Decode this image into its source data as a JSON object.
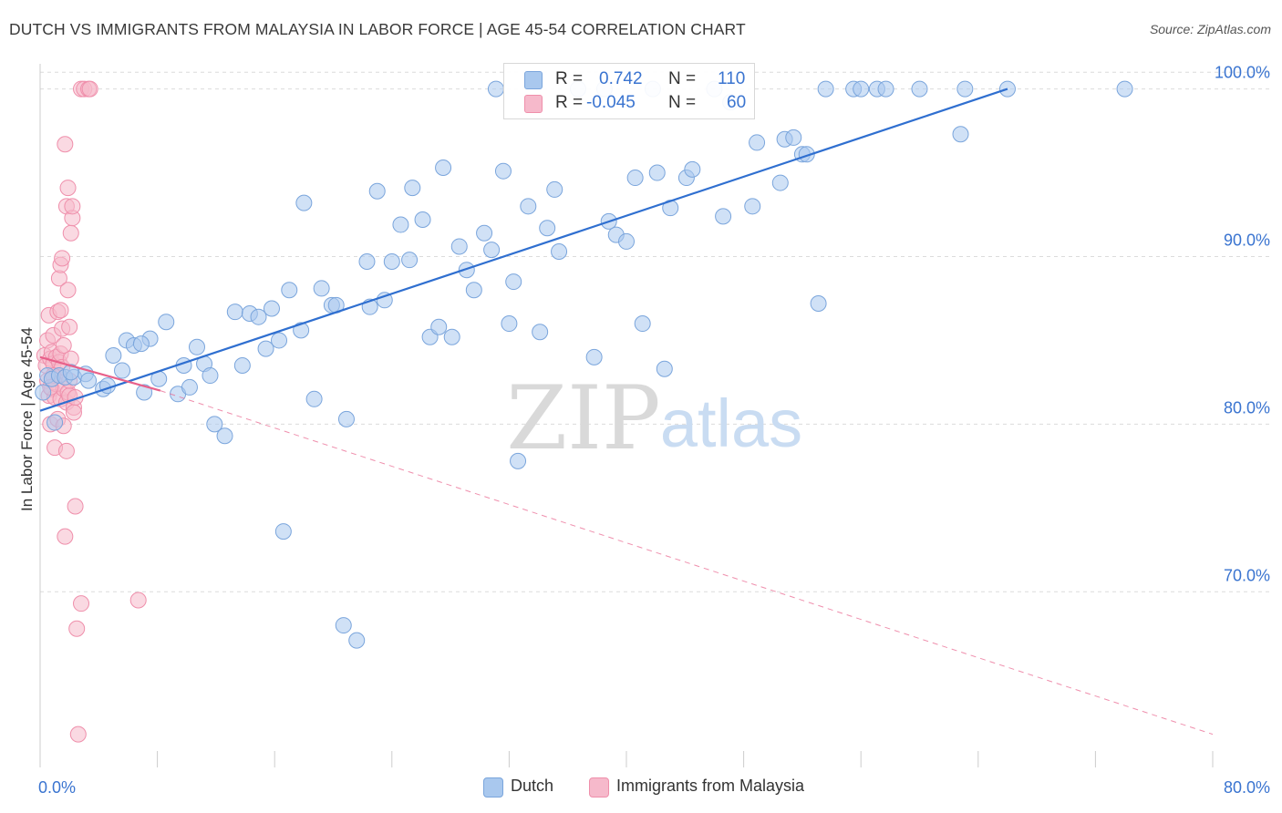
{
  "title": "DUTCH VS IMMIGRANTS FROM MALAYSIA IN LABOR FORCE | AGE 45-54 CORRELATION CHART",
  "source": "Source: ZipAtlas.com",
  "watermark": {
    "zip": "ZIP",
    "atlas": "atlas"
  },
  "legend": {
    "r_label": "R =",
    "n_label": "N =",
    "rows": [
      {
        "r": "0.742",
        "n": "110"
      },
      {
        "r": "-0.045",
        "n": "60"
      }
    ]
  },
  "bottom_legend": [
    "Dutch",
    "Immigrants from Malaysia"
  ],
  "colors": {
    "dutch_fill": "#a9c8ee",
    "dutch_stroke": "#7aa5dc",
    "dutch_line": "#2f6fd0",
    "malaysia_fill": "#f6b9cb",
    "malaysia_stroke": "#ef8fab",
    "malaysia_line": "#e8608a",
    "axis_text": "#3a74d0",
    "grid": "#dcdcdc"
  },
  "chart_data": {
    "type": "scatter",
    "title": "DUTCH VS IMMIGRANTS FROM MALAYSIA IN LABOR FORCE | AGE 45-54 CORRELATION CHART",
    "xlabel": "",
    "ylabel": "In Labor Force | Age 45-54",
    "xlim": [
      0,
      80
    ],
    "ylim": [
      60.5,
      101.5
    ],
    "x_tick_labels": [
      "0.0%",
      "80.0%"
    ],
    "y_ticks": [
      70,
      80,
      90,
      100
    ],
    "y_tick_labels": [
      "70.0%",
      "80.0%",
      "90.0%",
      "100.0%"
    ],
    "grid": true,
    "legend_position": "top-center",
    "series": [
      {
        "name": "Dutch",
        "r": 0.742,
        "n": 110,
        "trend": {
          "x": [
            0,
            66
          ],
          "y": [
            80.8,
            100
          ]
        },
        "points": [
          [
            0.2,
            81.9
          ],
          [
            0.5,
            82.9
          ],
          [
            0.8,
            82.7
          ],
          [
            1.0,
            80.1
          ],
          [
            1.3,
            82.9
          ],
          [
            1.7,
            82.8
          ],
          [
            2.3,
            82.8
          ],
          [
            3.1,
            83.0
          ],
          [
            3.3,
            82.6
          ],
          [
            4.3,
            82.1
          ],
          [
            5.0,
            84.1
          ],
          [
            5.6,
            83.2
          ],
          [
            5.9,
            85.0
          ],
          [
            6.4,
            84.7
          ],
          [
            7.1,
            81.9
          ],
          [
            7.5,
            85.1
          ],
          [
            8.1,
            82.7
          ],
          [
            8.6,
            86.1
          ],
          [
            9.4,
            81.8
          ],
          [
            9.8,
            83.5
          ],
          [
            10.2,
            82.2
          ],
          [
            10.7,
            84.6
          ],
          [
            11.2,
            83.6
          ],
          [
            11.6,
            82.9
          ],
          [
            11.9,
            80.0
          ],
          [
            12.6,
            79.3
          ],
          [
            13.3,
            86.7
          ],
          [
            13.8,
            83.5
          ],
          [
            14.3,
            86.6
          ],
          [
            14.9,
            86.4
          ],
          [
            15.4,
            84.5
          ],
          [
            15.8,
            86.9
          ],
          [
            16.3,
            85.0
          ],
          [
            16.6,
            73.6
          ],
          [
            17.0,
            88.0
          ],
          [
            17.8,
            85.6
          ],
          [
            18.0,
            93.2
          ],
          [
            18.7,
            81.5
          ],
          [
            19.2,
            88.1
          ],
          [
            19.9,
            87.1
          ],
          [
            20.2,
            87.1
          ],
          [
            20.7,
            68.0
          ],
          [
            20.9,
            80.3
          ],
          [
            21.6,
            67.1
          ],
          [
            22.3,
            89.7
          ],
          [
            22.5,
            87.0
          ],
          [
            23.0,
            93.9
          ],
          [
            23.5,
            87.4
          ],
          [
            24.0,
            89.7
          ],
          [
            24.6,
            91.9
          ],
          [
            25.2,
            89.8
          ],
          [
            25.4,
            94.1
          ],
          [
            26.1,
            92.2
          ],
          [
            26.6,
            85.2
          ],
          [
            27.2,
            85.8
          ],
          [
            27.5,
            95.3
          ],
          [
            28.1,
            85.2
          ],
          [
            28.6,
            90.6
          ],
          [
            29.1,
            89.2
          ],
          [
            29.6,
            88.0
          ],
          [
            30.3,
            91.4
          ],
          [
            30.8,
            90.4
          ],
          [
            31.1,
            100.0
          ],
          [
            31.6,
            95.1
          ],
          [
            32.0,
            86.0
          ],
          [
            32.3,
            88.5
          ],
          [
            32.6,
            77.8
          ],
          [
            33.3,
            93.0
          ],
          [
            34.1,
            85.5
          ],
          [
            34.6,
            91.7
          ],
          [
            35.1,
            94.0
          ],
          [
            35.4,
            90.3
          ],
          [
            36.7,
            100.0
          ],
          [
            37.8,
            84.0
          ],
          [
            38.5,
            100.0
          ],
          [
            38.8,
            92.1
          ],
          [
            39.3,
            91.3
          ],
          [
            40.0,
            90.9
          ],
          [
            40.6,
            94.7
          ],
          [
            41.1,
            86.0
          ],
          [
            41.8,
            100.0
          ],
          [
            42.1,
            95.0
          ],
          [
            42.6,
            83.3
          ],
          [
            43.0,
            92.9
          ],
          [
            44.1,
            94.7
          ],
          [
            44.5,
            95.2
          ],
          [
            46.0,
            100.0
          ],
          [
            46.6,
            92.4
          ],
          [
            47.1,
            99.2
          ],
          [
            48.6,
            93.0
          ],
          [
            48.9,
            96.8
          ],
          [
            50.5,
            94.4
          ],
          [
            50.8,
            97.0
          ],
          [
            51.4,
            97.1
          ],
          [
            52.0,
            96.1
          ],
          [
            52.3,
            96.1
          ],
          [
            53.1,
            87.2
          ],
          [
            53.6,
            100.0
          ],
          [
            55.5,
            100.0
          ],
          [
            56.0,
            100.0
          ],
          [
            57.1,
            100.0
          ],
          [
            57.7,
            100.0
          ],
          [
            60.0,
            100.0
          ],
          [
            62.8,
            97.3
          ],
          [
            63.1,
            100.0
          ],
          [
            66.0,
            100.0
          ],
          [
            74.0,
            100.0
          ],
          [
            2.1,
            83.1
          ],
          [
            4.6,
            82.3
          ],
          [
            6.9,
            84.8
          ]
        ]
      },
      {
        "name": "Immigrants from Malaysia",
        "r": -0.045,
        "n": 60,
        "trend_solid": {
          "x": [
            0,
            8.2
          ],
          "y": [
            84.0,
            82.0
          ]
        },
        "trend_dashed": {
          "x": [
            8.2,
            80
          ],
          "y": [
            82.0,
            61.5
          ]
        },
        "points": [
          [
            0.3,
            84.1
          ],
          [
            0.4,
            83.5
          ],
          [
            0.5,
            85.0
          ],
          [
            0.5,
            82.6
          ],
          [
            0.6,
            81.7
          ],
          [
            0.6,
            86.5
          ],
          [
            0.7,
            83.9
          ],
          [
            0.7,
            80.0
          ],
          [
            0.8,
            84.3
          ],
          [
            0.8,
            82.1
          ],
          [
            0.9,
            85.3
          ],
          [
            0.9,
            83.6
          ],
          [
            1.0,
            81.6
          ],
          [
            1.0,
            78.6
          ],
          [
            1.1,
            84.0
          ],
          [
            1.1,
            82.4
          ],
          [
            1.2,
            86.7
          ],
          [
            1.2,
            80.3
          ],
          [
            1.3,
            83.7
          ],
          [
            1.3,
            88.7
          ],
          [
            1.3,
            82.9
          ],
          [
            1.4,
            89.5
          ],
          [
            1.4,
            84.2
          ],
          [
            1.4,
            81.5
          ],
          [
            1.5,
            89.9
          ],
          [
            1.5,
            85.7
          ],
          [
            1.5,
            83.4
          ],
          [
            1.6,
            84.7
          ],
          [
            1.6,
            82.1
          ],
          [
            1.6,
            79.9
          ],
          [
            1.7,
            73.3
          ],
          [
            1.7,
            96.7
          ],
          [
            1.8,
            93.0
          ],
          [
            1.8,
            81.3
          ],
          [
            1.8,
            78.4
          ],
          [
            1.9,
            94.1
          ],
          [
            1.9,
            88.0
          ],
          [
            1.9,
            81.9
          ],
          [
            2.0,
            85.8
          ],
          [
            2.0,
            81.7
          ],
          [
            2.0,
            82.6
          ],
          [
            2.1,
            83.9
          ],
          [
            2.1,
            91.4
          ],
          [
            2.2,
            92.3
          ],
          [
            2.2,
            93.0
          ],
          [
            2.3,
            81.0
          ],
          [
            2.3,
            80.7
          ],
          [
            2.4,
            81.6
          ],
          [
            2.4,
            75.1
          ],
          [
            2.5,
            67.8
          ],
          [
            2.6,
            61.5
          ],
          [
            2.8,
            69.3
          ],
          [
            2.8,
            100.0
          ],
          [
            3.0,
            100.0
          ],
          [
            3.3,
            100.0
          ],
          [
            3.4,
            100.0
          ],
          [
            6.7,
            69.5
          ],
          [
            0.9,
            82.9
          ],
          [
            1.4,
            86.8
          ],
          [
            0.7,
            82.2
          ]
        ]
      }
    ]
  }
}
